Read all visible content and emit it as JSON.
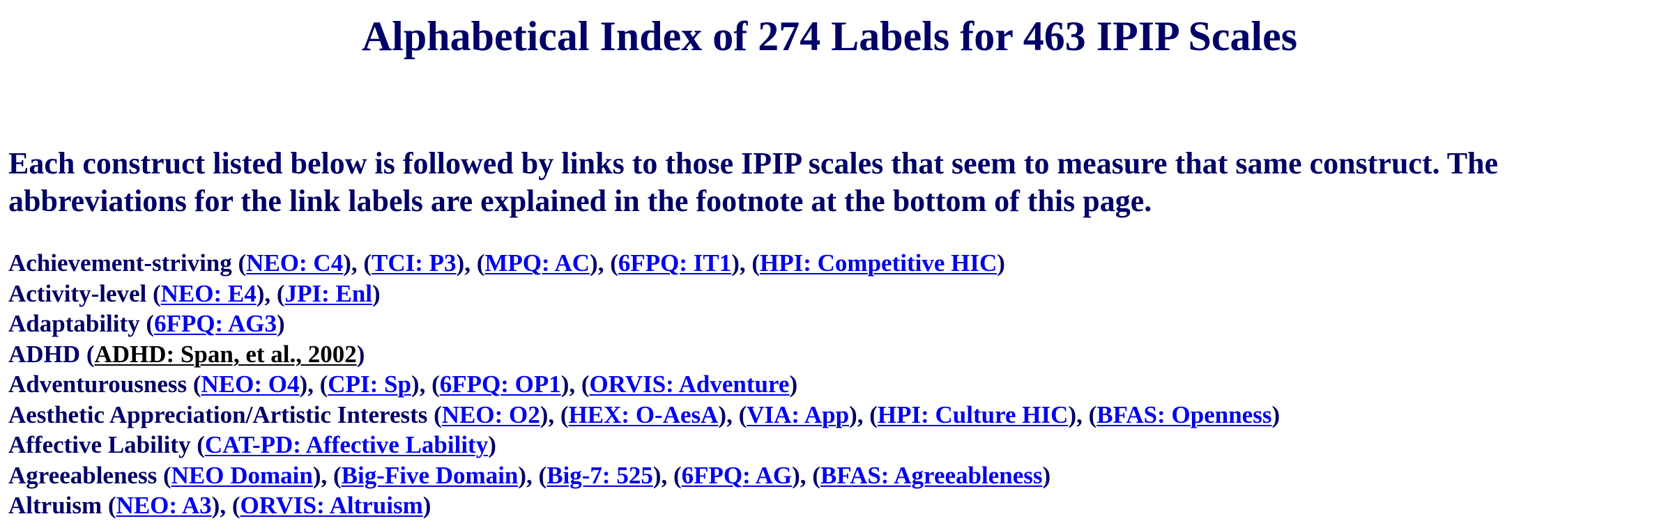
{
  "title": "Alphabetical Index of 274 Labels for 463 IPIP Scales",
  "intro": "Each construct listed below is followed by links to those IPIP scales that seem to measure that same construct.  The abbreviations for the link labels are explained in the footnote at the bottom of this page.",
  "colors": {
    "heading": "#000066",
    "link": "#0000ee",
    "visited_link": "#000000",
    "background": "#ffffff"
  },
  "constructs": [
    {
      "name": "Achievement-striving",
      "links": [
        {
          "label": "NEO: C4"
        },
        {
          "label": "TCI: P3"
        },
        {
          "label": "MPQ: AC"
        },
        {
          "label": "6FPQ: IT1"
        },
        {
          "label": "HPI: Competitive HIC"
        }
      ]
    },
    {
      "name": "Activity-level",
      "links": [
        {
          "label": "NEO: E4"
        },
        {
          "label": "JPI: Enl"
        }
      ]
    },
    {
      "name": "Adaptability",
      "links": [
        {
          "label": "6FPQ: AG3"
        }
      ]
    },
    {
      "name": "ADHD",
      "links": [
        {
          "label": "ADHD: Span, et al., 2002",
          "visited": true
        }
      ]
    },
    {
      "name": "Adventurousness",
      "links": [
        {
          "label": "NEO: O4"
        },
        {
          "label": "CPI: Sp"
        },
        {
          "label": "6FPQ: OP1"
        },
        {
          "label": "ORVIS: Adventure"
        }
      ]
    },
    {
      "name": "Aesthetic Appreciation/Artistic Interests",
      "links": [
        {
          "label": "NEO: O2"
        },
        {
          "label": "HEX: O-AesA"
        },
        {
          "label": "VIA: App"
        },
        {
          "label": "HPI: Culture HIC"
        },
        {
          "label": "BFAS: Openness"
        }
      ]
    },
    {
      "name": "Affective Lability",
      "links": [
        {
          "label": "CAT-PD: Affective Lability"
        }
      ]
    },
    {
      "name": "Agreeableness",
      "links": [
        {
          "label": "NEO Domain"
        },
        {
          "label": "Big-Five Domain"
        },
        {
          "label": "Big-7: 525"
        },
        {
          "label": "6FPQ: AG"
        },
        {
          "label": "BFAS: Agreeableness"
        }
      ]
    },
    {
      "name": "Altruism",
      "links": [
        {
          "label": "NEO: A3"
        },
        {
          "label": "ORVIS: Altruism"
        }
      ]
    }
  ]
}
